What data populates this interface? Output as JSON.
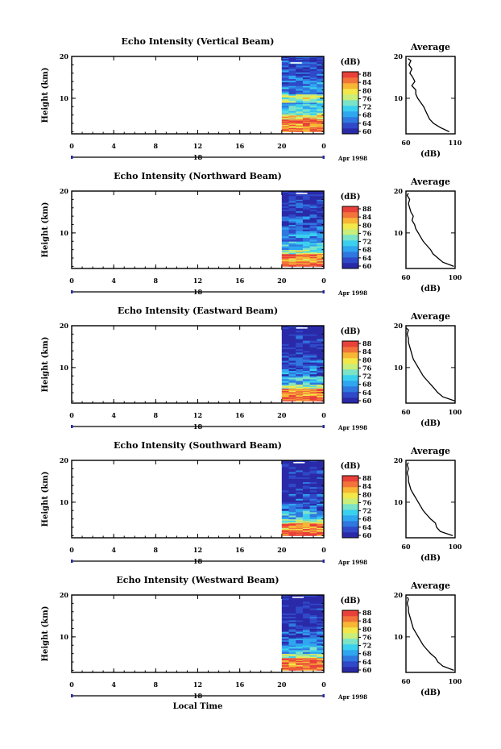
{
  "figure": {
    "x_axis_title": "Local Time",
    "date_label": "Apr 1998",
    "colorbar_unit": "(dB)",
    "colorbar_ticks": [
      "88",
      "84",
      "80",
      "76",
      "72",
      "68",
      "64",
      "60"
    ],
    "average_title": "Average",
    "average_xlabel": "(dB)",
    "main_ylabel": "Height (km)",
    "colormap": [
      "#2a2aa8",
      "#2f49c9",
      "#2f78e0",
      "#2fa6f0",
      "#3bd0ee",
      "#7be3c8",
      "#c9ee7a",
      "#f2e84a",
      "#f7b634",
      "#f2743a",
      "#e9403a"
    ]
  },
  "chart_data": [
    {
      "type": "heatmap",
      "title": "Echo Intensity (Vertical Beam)",
      "x_ticks": [
        "0",
        "4",
        "8",
        "12",
        "16",
        "20",
        "0"
      ],
      "day_label": "18",
      "y_ticks": [
        "20",
        "10"
      ],
      "xlim": [
        0,
        24
      ],
      "ylim": [
        1.5,
        20
      ],
      "data_x_start": 20,
      "colorbar_range": [
        60,
        88
      ],
      "avg_xlim": [
        60,
        110
      ],
      "avg_x_ticks": [
        "60",
        "110"
      ],
      "avg_profile": [
        [
          104,
          2
        ],
        [
          95,
          3
        ],
        [
          88,
          4
        ],
        [
          84,
          5
        ],
        [
          82,
          6
        ],
        [
          80,
          7
        ],
        [
          78,
          8
        ],
        [
          75,
          9
        ],
        [
          72,
          10
        ],
        [
          70,
          11
        ],
        [
          70,
          12
        ],
        [
          66,
          13
        ],
        [
          69,
          14
        ],
        [
          67,
          15
        ],
        [
          64,
          16
        ],
        [
          66,
          17
        ],
        [
          63,
          18
        ],
        [
          65,
          19
        ],
        [
          62,
          19.5
        ]
      ],
      "bands": [
        [
          2,
          3,
          85
        ],
        [
          3,
          4,
          83
        ],
        [
          4,
          5,
          86
        ],
        [
          5,
          6,
          80
        ],
        [
          6,
          7,
          74
        ],
        [
          7,
          9,
          70
        ],
        [
          9,
          11,
          76
        ],
        [
          11,
          13,
          68
        ],
        [
          13,
          15,
          66
        ],
        [
          15,
          17,
          64
        ],
        [
          17,
          19,
          65
        ],
        [
          19,
          20,
          62
        ]
      ]
    },
    {
      "type": "heatmap",
      "title": "Echo Intensity (Northward Beam)",
      "x_ticks": [
        "0",
        "4",
        "8",
        "12",
        "16",
        "20",
        "0"
      ],
      "day_label": "18",
      "y_ticks": [
        "20",
        "10"
      ],
      "xlim": [
        0,
        24
      ],
      "ylim": [
        1.5,
        20
      ],
      "data_x_start": 20,
      "colorbar_range": [
        60,
        88
      ],
      "avg_xlim": [
        60,
        100
      ],
      "avg_x_ticks": [
        "60",
        "100"
      ],
      "avg_profile": [
        [
          99,
          2
        ],
        [
          90,
          3
        ],
        [
          86,
          4
        ],
        [
          82,
          5
        ],
        [
          80,
          6
        ],
        [
          77,
          7
        ],
        [
          74,
          8
        ],
        [
          72,
          9
        ],
        [
          70,
          10
        ],
        [
          68,
          11
        ],
        [
          67,
          12
        ],
        [
          65,
          13
        ],
        [
          66,
          14
        ],
        [
          64,
          15
        ],
        [
          63,
          16
        ],
        [
          62,
          17
        ],
        [
          63,
          18
        ],
        [
          61,
          19
        ],
        [
          62,
          19.5
        ]
      ],
      "bands": [
        [
          2,
          3,
          86
        ],
        [
          3,
          4,
          82
        ],
        [
          4,
          5,
          85
        ],
        [
          5,
          6,
          76
        ],
        [
          6,
          8,
          70
        ],
        [
          8,
          10,
          68
        ],
        [
          10,
          12,
          66
        ],
        [
          12,
          14,
          64
        ],
        [
          14,
          16,
          62
        ],
        [
          16,
          18,
          63
        ],
        [
          18,
          20,
          61
        ]
      ]
    },
    {
      "type": "heatmap",
      "title": "Echo Intensity (Eastward Beam)",
      "x_ticks": [
        "0",
        "4",
        "8",
        "12",
        "16",
        "20",
        "0"
      ],
      "day_label": "18",
      "y_ticks": [
        "20",
        "10"
      ],
      "xlim": [
        0,
        24
      ],
      "ylim": [
        1.5,
        20
      ],
      "data_x_start": 20,
      "colorbar_range": [
        60,
        88
      ],
      "avg_xlim": [
        60,
        100
      ],
      "avg_x_ticks": [
        "60",
        "100"
      ],
      "avg_profile": [
        [
          100,
          2
        ],
        [
          90,
          3
        ],
        [
          86,
          4
        ],
        [
          83,
          5
        ],
        [
          80,
          6
        ],
        [
          77,
          7
        ],
        [
          74,
          8
        ],
        [
          72,
          9
        ],
        [
          70,
          10
        ],
        [
          68,
          11
        ],
        [
          66,
          12
        ],
        [
          65,
          13
        ],
        [
          64,
          14
        ],
        [
          63,
          15
        ],
        [
          62,
          16
        ],
        [
          62,
          17
        ],
        [
          61,
          18
        ],
        [
          62,
          19
        ],
        [
          60,
          19.5
        ]
      ],
      "bands": [
        [
          2,
          3,
          86
        ],
        [
          3,
          4,
          83
        ],
        [
          4,
          5,
          84
        ],
        [
          5,
          6,
          76
        ],
        [
          6,
          8,
          70
        ],
        [
          8,
          10,
          66
        ],
        [
          10,
          12,
          64
        ],
        [
          12,
          14,
          62
        ],
        [
          14,
          16,
          61
        ],
        [
          16,
          18,
          62
        ],
        [
          18,
          20,
          60
        ]
      ]
    },
    {
      "type": "heatmap",
      "title": "Echo Intensity (Southward Beam)",
      "x_ticks": [
        "0",
        "4",
        "8",
        "12",
        "16",
        "20",
        "0"
      ],
      "day_label": "18",
      "y_ticks": [
        "20",
        "10"
      ],
      "xlim": [
        0,
        24
      ],
      "ylim": [
        1.5,
        20
      ],
      "data_x_start": 20,
      "colorbar_range": [
        60,
        88
      ],
      "avg_xlim": [
        60,
        100
      ],
      "avg_x_ticks": [
        "60",
        "100"
      ],
      "avg_profile": [
        [
          98,
          2
        ],
        [
          88,
          3
        ],
        [
          85,
          4
        ],
        [
          84,
          5
        ],
        [
          80,
          6
        ],
        [
          77,
          7
        ],
        [
          74,
          8
        ],
        [
          72,
          9
        ],
        [
          70,
          10
        ],
        [
          68,
          11
        ],
        [
          66,
          12
        ],
        [
          64,
          13
        ],
        [
          63,
          14
        ],
        [
          62,
          15
        ],
        [
          62,
          16
        ],
        [
          61,
          17
        ],
        [
          62,
          18
        ],
        [
          61,
          19
        ],
        [
          62,
          19.5
        ]
      ],
      "bands": [
        [
          2,
          3,
          86
        ],
        [
          3,
          4,
          82
        ],
        [
          4,
          5,
          85
        ],
        [
          5,
          6,
          76
        ],
        [
          6,
          8,
          70
        ],
        [
          8,
          10,
          66
        ],
        [
          10,
          12,
          64
        ],
        [
          12,
          14,
          62
        ],
        [
          14,
          16,
          61
        ],
        [
          16,
          18,
          62
        ],
        [
          18,
          20,
          60
        ]
      ]
    },
    {
      "type": "heatmap",
      "title": "Echo Intensity (Westward Beam)",
      "x_ticks": [
        "0",
        "4",
        "8",
        "12",
        "16",
        "20",
        "0"
      ],
      "day_label": "18",
      "y_ticks": [
        "20",
        "10"
      ],
      "xlim": [
        0,
        24
      ],
      "ylim": [
        1.5,
        20
      ],
      "data_x_start": 20,
      "colorbar_range": [
        60,
        88
      ],
      "avg_xlim": [
        60,
        100
      ],
      "avg_x_ticks": [
        "60",
        "100"
      ],
      "avg_profile": [
        [
          99,
          2
        ],
        [
          90,
          3
        ],
        [
          86,
          4
        ],
        [
          84,
          5
        ],
        [
          80,
          6
        ],
        [
          77,
          7
        ],
        [
          74,
          8
        ],
        [
          72,
          9
        ],
        [
          70,
          10
        ],
        [
          68,
          11
        ],
        [
          66,
          12
        ],
        [
          65,
          13
        ],
        [
          64,
          14
        ],
        [
          63,
          15
        ],
        [
          62,
          16
        ],
        [
          62,
          17
        ],
        [
          61,
          18
        ],
        [
          62,
          19
        ],
        [
          61,
          19.5
        ]
      ],
      "bands": [
        [
          2,
          3,
          86
        ],
        [
          3,
          4,
          83
        ],
        [
          4,
          5,
          85
        ],
        [
          5,
          6,
          76
        ],
        [
          6,
          8,
          70
        ],
        [
          8,
          10,
          66
        ],
        [
          10,
          12,
          64
        ],
        [
          12,
          14,
          62
        ],
        [
          14,
          16,
          61
        ],
        [
          16,
          18,
          62
        ],
        [
          18,
          20,
          60
        ]
      ]
    }
  ]
}
